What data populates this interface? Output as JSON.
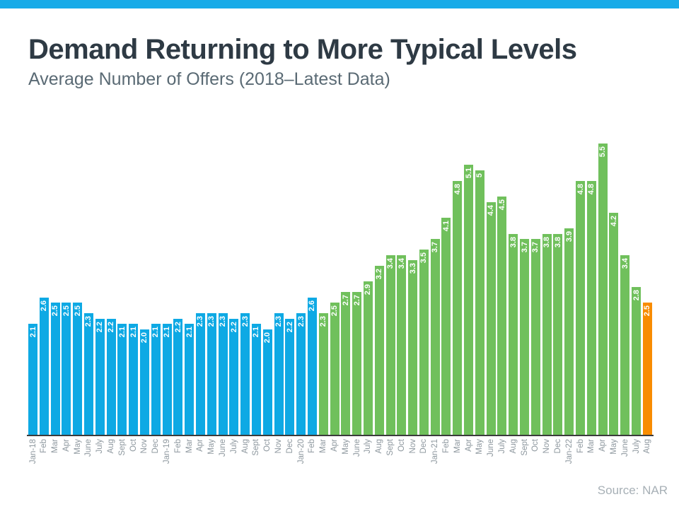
{
  "theme": {
    "accent_bar_color": "#18abe8",
    "blue": "#0ea9e4",
    "green": "#70c05c",
    "orange": "#f88c00",
    "title_color": "#2e3a44",
    "subtitle_color": "#5a6a74",
    "axis_color": "#3b3b3b",
    "tick_label_color": "#8d979e",
    "source_color": "#a7b0b6",
    "value_label_color": "#ffffff"
  },
  "header": {
    "title": "Demand Returning to More Typical Levels",
    "subtitle": "Average Number of Offers (2018–Latest Data)"
  },
  "footer": {
    "source": "Source: NAR"
  },
  "chart_data": {
    "type": "bar",
    "title": "Demand Returning to More Typical Levels",
    "subtitle": "Average Number of Offers (2018–Latest Data)",
    "source": "Source: NAR",
    "xlabel": "",
    "ylabel": "",
    "ylim": [
      0,
      5.5
    ],
    "grid": false,
    "legend": false,
    "value_labels_rotated": true,
    "tick_labels_rotated": true,
    "categories": [
      "Jan-18",
      "Feb",
      "Mar",
      "Apr",
      "May",
      "June",
      "July",
      "Aug",
      "Sept",
      "Oct",
      "Nov",
      "Dec",
      "Jan-19",
      "Feb",
      "Mar",
      "Apr",
      "May",
      "June",
      "July",
      "Aug",
      "Sept",
      "Oct",
      "Nov",
      "Dec",
      "Jan-20",
      "Feb",
      "Mar",
      "Apr",
      "May",
      "June",
      "July",
      "Aug",
      "Sept",
      "Oct",
      "Nov",
      "Dec",
      "Jan-21",
      "Feb",
      "Mar",
      "Apr",
      "May",
      "June",
      "July",
      "Aug",
      "Sept",
      "Oct",
      "Nov",
      "Dec",
      "Jan-22",
      "Feb",
      "Mar",
      "Apr",
      "May",
      "June",
      "July",
      "Aug"
    ],
    "values": [
      2.1,
      2.6,
      2.5,
      2.5,
      2.5,
      2.3,
      2.2,
      2.2,
      2.1,
      2.1,
      2.0,
      2.1,
      2.1,
      2.2,
      2.1,
      2.3,
      2.3,
      2.3,
      2.2,
      2.3,
      2.1,
      2.0,
      2.3,
      2.2,
      2.3,
      2.6,
      2.3,
      2.5,
      2.7,
      2.7,
      2.9,
      3.2,
      3.4,
      3.4,
      3.3,
      3.5,
      3.7,
      4.1,
      4.8,
      5.1,
      5.0,
      4.4,
      4.5,
      3.8,
      3.7,
      3.7,
      3.8,
      3.8,
      3.9,
      4.8,
      4.8,
      5.5,
      4.2,
      3.4,
      2.8,
      2.5
    ],
    "value_labels": [
      "2.1",
      "2.6",
      "2.5",
      "2.5",
      "2.5",
      "2.3",
      "2.2",
      "2.2",
      "2.1",
      "2.1",
      "2.0",
      "2.1",
      "2.1",
      "2.2",
      "2.1",
      "2.3",
      "2.3",
      "2.3",
      "2.2",
      "2.3",
      "2.1",
      "2.0",
      "2.3",
      "2.2",
      "2.3",
      "2.6",
      "2.3",
      "2.5",
      "2.7",
      "2.7",
      "2.9",
      "3.2",
      "3.4",
      "3.4",
      "3.3",
      "3.5",
      "3.7",
      "4.1",
      "4.8",
      "5.1",
      "5",
      "4.4",
      "4.5",
      "3.8",
      "3.7",
      "3.7",
      "3.8",
      "3.8",
      "3.9",
      "4.8",
      "4.8",
      "5.5",
      "4.2",
      "3.4",
      "2.8",
      "2.5"
    ],
    "segments": [
      {
        "name": "jan-2018-to-feb-2020",
        "color_key": "blue",
        "count": 26
      },
      {
        "name": "mar-2020-to-july-2022",
        "color_key": "green",
        "count": 29
      },
      {
        "name": "aug-2022-latest",
        "color_key": "orange",
        "count": 1
      }
    ]
  }
}
